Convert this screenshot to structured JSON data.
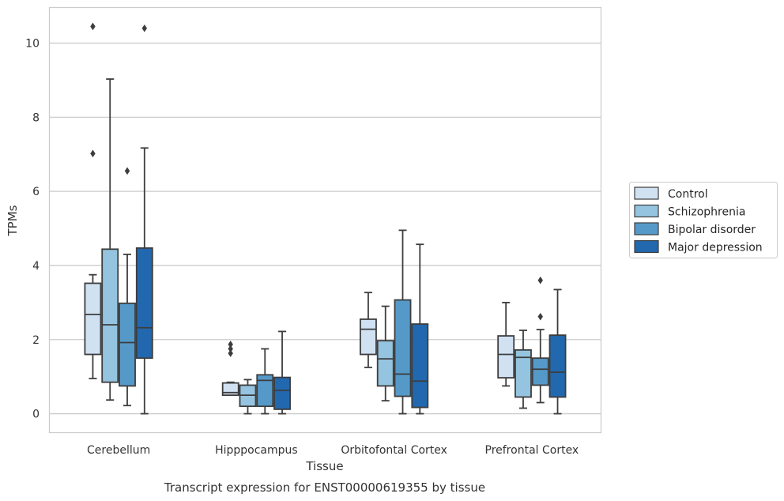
{
  "chart_data": {
    "type": "boxplot",
    "caption": "Transcript expression for ENST00000619355 by tissue",
    "xlabel": "Tissue",
    "ylabel": "TPMs",
    "ylim": [
      -0.5,
      10.95
    ],
    "yticks": [
      0,
      2,
      4,
      6,
      8,
      10
    ],
    "grid": "horizontal",
    "legend_position": "right",
    "categories": [
      "Cerebellum",
      "Hipppocampus",
      "Orbitofontal Cortex",
      "Prefrontal Cortex"
    ],
    "series": [
      {
        "name": "Control",
        "color": "#d0e1f2",
        "boxes": [
          {
            "whislo": 0.95,
            "q1": 1.6,
            "med": 2.68,
            "q3": 3.52,
            "whishi": 3.75,
            "fliers": [
              7.02,
              10.45
            ]
          },
          {
            "whislo": 0.5,
            "q1": 0.5,
            "med": 0.57,
            "q3": 0.83,
            "whishi": 0.85,
            "fliers": [
              1.63,
              1.75,
              1.87
            ]
          },
          {
            "whislo": 1.25,
            "q1": 1.6,
            "med": 2.28,
            "q3": 2.55,
            "whishi": 3.27,
            "fliers": []
          },
          {
            "whislo": 0.75,
            "q1": 0.97,
            "med": 1.6,
            "q3": 2.1,
            "whishi": 3.0,
            "fliers": []
          }
        ]
      },
      {
        "name": "Schizophrenia",
        "color": "#94c4df",
        "boxes": [
          {
            "whislo": 0.37,
            "q1": 0.85,
            "med": 2.4,
            "q3": 4.44,
            "whishi": 9.03,
            "fliers": []
          },
          {
            "whislo": 0.0,
            "q1": 0.2,
            "med": 0.5,
            "q3": 0.77,
            "whishi": 0.92,
            "fliers": []
          },
          {
            "whislo": 0.35,
            "q1": 0.75,
            "med": 1.48,
            "q3": 1.97,
            "whishi": 2.9,
            "fliers": []
          },
          {
            "whislo": 0.15,
            "q1": 0.45,
            "med": 1.52,
            "q3": 1.72,
            "whishi": 2.25,
            "fliers": []
          }
        ]
      },
      {
        "name": "Bipolar disorder",
        "color": "#5599c9",
        "boxes": [
          {
            "whislo": 0.22,
            "q1": 0.75,
            "med": 1.92,
            "q3": 2.98,
            "whishi": 4.3,
            "fliers": [
              6.55
            ]
          },
          {
            "whislo": 0.0,
            "q1": 0.2,
            "med": 0.9,
            "q3": 1.05,
            "whishi": 1.75,
            "fliers": []
          },
          {
            "whislo": 0.0,
            "q1": 0.47,
            "med": 1.07,
            "q3": 3.07,
            "whishi": 4.95,
            "fliers": []
          },
          {
            "whislo": 0.3,
            "q1": 0.77,
            "med": 1.2,
            "q3": 1.5,
            "whishi": 2.27,
            "fliers": [
              2.62,
              3.6
            ]
          }
        ]
      },
      {
        "name": "Major depression",
        "color": "#2268ae",
        "boxes": [
          {
            "whislo": 0.0,
            "q1": 1.5,
            "med": 2.32,
            "q3": 4.47,
            "whishi": 7.17,
            "fliers": [
              10.4
            ]
          },
          {
            "whislo": 0.0,
            "q1": 0.12,
            "med": 0.63,
            "q3": 0.98,
            "whishi": 2.22,
            "fliers": []
          },
          {
            "whislo": 0.0,
            "q1": 0.17,
            "med": 0.88,
            "q3": 2.42,
            "whishi": 4.57,
            "fliers": []
          },
          {
            "whislo": 0.0,
            "q1": 0.45,
            "med": 1.12,
            "q3": 2.12,
            "whishi": 3.35,
            "fliers": []
          }
        ]
      }
    ]
  }
}
